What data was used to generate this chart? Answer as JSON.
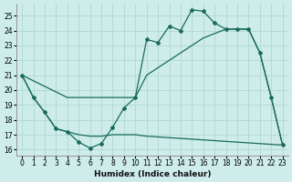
{
  "xlabel": "Humidex (Indice chaleur)",
  "bg_color": "#cdecea",
  "grid_color": "#b0d8d4",
  "line_color": "#1a6b5a",
  "xlim": [
    -0.5,
    23.5
  ],
  "ylim": [
    15.6,
    25.8
  ],
  "yticks": [
    16,
    17,
    18,
    19,
    20,
    21,
    22,
    23,
    24,
    25
  ],
  "xticks": [
    0,
    1,
    2,
    3,
    4,
    5,
    6,
    7,
    8,
    9,
    10,
    11,
    12,
    13,
    14,
    15,
    16,
    17,
    18,
    19,
    20,
    21,
    22,
    23
  ],
  "xtick_labels": [
    "0",
    "1",
    "2",
    "3",
    "4",
    "5",
    "6",
    "7",
    "8",
    "9",
    "10",
    "11",
    "12",
    "13",
    "14",
    "15",
    "16",
    "17",
    "18",
    "19",
    "20",
    "21",
    "22",
    "23"
  ],
  "jagged_x": [
    0,
    1,
    2,
    3,
    4,
    5,
    6,
    7,
    8,
    9,
    10,
    11,
    12,
    13,
    14,
    15,
    16,
    17,
    18,
    19,
    20,
    21,
    22,
    23
  ],
  "jagged_y": [
    21.0,
    19.5,
    18.5,
    17.4,
    17.2,
    16.5,
    16.1,
    16.4,
    17.5,
    18.8,
    19.5,
    23.4,
    23.2,
    24.3,
    24.0,
    25.4,
    25.3,
    24.5,
    24.1,
    24.1,
    24.1,
    22.5,
    19.5,
    16.3
  ],
  "lower_x": [
    0,
    1,
    2,
    3,
    4,
    5,
    6,
    7,
    8,
    9,
    10,
    11,
    12,
    13,
    14,
    15,
    16,
    17,
    18,
    19,
    20,
    21,
    22,
    23
  ],
  "lower_y": [
    21.0,
    19.5,
    18.5,
    17.4,
    17.2,
    17.0,
    16.9,
    16.9,
    17.0,
    17.0,
    17.0,
    16.9,
    16.85,
    16.8,
    16.75,
    16.7,
    16.65,
    16.6,
    16.55,
    16.5,
    16.45,
    16.4,
    16.35,
    16.3
  ],
  "trend_x": [
    0,
    4,
    10,
    11,
    12,
    13,
    14,
    15,
    16,
    17,
    18,
    19,
    20,
    21,
    22,
    23
  ],
  "trend_y": [
    21.0,
    19.5,
    19.5,
    21.0,
    21.5,
    22.0,
    22.5,
    23.0,
    23.5,
    23.8,
    24.1,
    24.1,
    24.1,
    22.5,
    19.5,
    16.3
  ]
}
